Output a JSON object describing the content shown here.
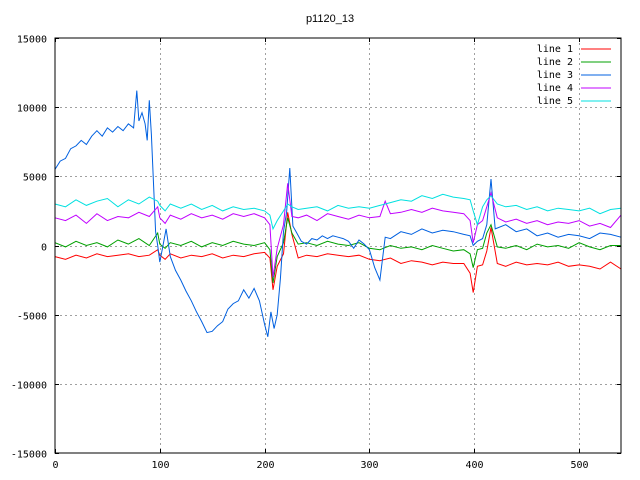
{
  "chart_data": {
    "type": "line",
    "title": "p1120_13",
    "xlabel": "",
    "ylabel": "",
    "xlim": [
      0,
      540
    ],
    "ylim": [
      -15000,
      15000
    ],
    "xticks": [
      0,
      100,
      200,
      300,
      400,
      500
    ],
    "yticks": [
      -15000,
      -10000,
      -5000,
      0,
      5000,
      10000,
      15000
    ],
    "grid": true,
    "legend_position": "top-right",
    "series": [
      {
        "name": "line 1",
        "color": "#ff0000",
        "x": [
          0,
          10,
          20,
          30,
          40,
          50,
          60,
          70,
          80,
          90,
          98,
          100,
          105,
          110,
          120,
          130,
          140,
          150,
          160,
          170,
          180,
          190,
          200,
          205,
          208,
          212,
          218,
          222,
          226,
          232,
          240,
          250,
          260,
          270,
          280,
          290,
          300,
          310,
          320,
          330,
          340,
          350,
          360,
          370,
          380,
          390,
          396,
          399,
          403,
          408,
          412,
          416,
          422,
          430,
          440,
          450,
          460,
          470,
          480,
          490,
          500,
          510,
          520,
          530,
          540
        ],
        "y": [
          -800,
          -1000,
          -700,
          -900,
          -600,
          -800,
          -700,
          -600,
          -800,
          -700,
          -300,
          -700,
          -1000,
          -600,
          -900,
          -700,
          -800,
          -600,
          -900,
          -700,
          -800,
          -600,
          -500,
          -900,
          -3200,
          -1500,
          -600,
          2400,
          800,
          -900,
          -700,
          -800,
          -600,
          -700,
          -800,
          -700,
          -1000,
          -1100,
          -900,
          -1300,
          -1100,
          -1200,
          -1400,
          -1200,
          -1300,
          -1300,
          -2000,
          -3400,
          -1500,
          -1400,
          -400,
          1300,
          -1300,
          -1500,
          -1200,
          -1400,
          -1300,
          -1400,
          -1200,
          -1500,
          -1400,
          -1500,
          -1700,
          -1200,
          -1700
        ]
      },
      {
        "name": "line 2",
        "color": "#00a000",
        "x": [
          0,
          10,
          20,
          30,
          40,
          50,
          60,
          70,
          80,
          90,
          98,
          100,
          105,
          110,
          120,
          130,
          140,
          150,
          160,
          170,
          180,
          190,
          200,
          205,
          208,
          212,
          218,
          222,
          226,
          232,
          240,
          250,
          260,
          270,
          280,
          290,
          300,
          310,
          320,
          330,
          340,
          350,
          360,
          370,
          380,
          390,
          396,
          399,
          403,
          408,
          412,
          416,
          422,
          430,
          440,
          450,
          460,
          470,
          480,
          490,
          500,
          510,
          520,
          530,
          540
        ],
        "y": [
          200,
          -100,
          300,
          0,
          200,
          -100,
          400,
          100,
          500,
          0,
          900,
          100,
          -200,
          200,
          0,
          300,
          -100,
          200,
          0,
          300,
          100,
          0,
          200,
          -300,
          -2700,
          -800,
          200,
          2000,
          900,
          100,
          200,
          0,
          300,
          100,
          0,
          200,
          -200,
          -300,
          0,
          -200,
          -100,
          -300,
          0,
          -200,
          -400,
          -300,
          -600,
          -1600,
          -300,
          -200,
          900,
          1500,
          -100,
          -200,
          0,
          -300,
          100,
          -100,
          0,
          -200,
          200,
          -100,
          -300,
          0,
          0
        ]
      },
      {
        "name": "line 3",
        "color": "#0060e0",
        "x": [
          0,
          5,
          10,
          15,
          20,
          25,
          30,
          35,
          40,
          45,
          50,
          55,
          60,
          65,
          70,
          75,
          78,
          80,
          83,
          86,
          88,
          90,
          92,
          94,
          96,
          98,
          100,
          103,
          106,
          110,
          115,
          120,
          125,
          130,
          135,
          140,
          145,
          150,
          155,
          160,
          165,
          170,
          175,
          180,
          185,
          190,
          195,
          200,
          203,
          206,
          209,
          212,
          215,
          218,
          221,
          224,
          227,
          230,
          235,
          240,
          245,
          250,
          255,
          260,
          265,
          270,
          275,
          280,
          285,
          290,
          295,
          300,
          305,
          310,
          315,
          320,
          330,
          340,
          350,
          360,
          370,
          380,
          390,
          396,
          399,
          403,
          408,
          412,
          416,
          420,
          430,
          440,
          450,
          460,
          470,
          480,
          490,
          500,
          510,
          520,
          530,
          540
        ],
        "y": [
          5500,
          6100,
          6300,
          7000,
          7200,
          7600,
          7300,
          7900,
          8300,
          7900,
          8500,
          8200,
          8600,
          8300,
          8800,
          8500,
          11200,
          9000,
          9600,
          8800,
          7600,
          10500,
          8000,
          4500,
          1000,
          0,
          -1200,
          0,
          1200,
          -800,
          -1800,
          -2500,
          -3300,
          -4000,
          -4800,
          -5500,
          -6300,
          -6200,
          -5800,
          -5500,
          -4600,
          -4200,
          -4000,
          -3200,
          -3800,
          -3100,
          -4000,
          -5700,
          -6600,
          -4800,
          -6000,
          -5000,
          -2400,
          1000,
          2400,
          5600,
          1400,
          1000,
          300,
          100,
          500,
          400,
          700,
          500,
          700,
          600,
          500,
          300,
          -200,
          400,
          100,
          -300,
          -1600,
          -2500,
          600,
          500,
          1000,
          800,
          1200,
          900,
          1100,
          1000,
          800,
          700,
          0,
          300,
          500,
          1500,
          4800,
          1200,
          1500,
          1000,
          1200,
          700,
          900,
          600,
          800,
          700,
          500,
          900,
          800,
          600
        ]
      },
      {
        "name": "line 4",
        "color": "#c000ff",
        "x": [
          0,
          10,
          20,
          30,
          40,
          50,
          60,
          70,
          80,
          90,
          98,
          100,
          105,
          110,
          120,
          130,
          140,
          150,
          160,
          170,
          180,
          190,
          200,
          205,
          208,
          212,
          218,
          222,
          226,
          232,
          240,
          250,
          260,
          270,
          280,
          290,
          300,
          310,
          315,
          320,
          330,
          340,
          350,
          360,
          370,
          380,
          390,
          396,
          399,
          403,
          408,
          412,
          416,
          422,
          430,
          440,
          450,
          460,
          470,
          480,
          490,
          500,
          510,
          520,
          530,
          540
        ],
        "y": [
          2000,
          1800,
          2200,
          1600,
          2300,
          1800,
          2100,
          2000,
          2400,
          2100,
          2800,
          2000,
          1600,
          2200,
          1900,
          2300,
          2000,
          2200,
          1900,
          2300,
          2100,
          2300,
          2000,
          1500,
          -2300,
          -200,
          1500,
          4500,
          2100,
          2000,
          2200,
          1800,
          2300,
          2100,
          1900,
          2200,
          2000,
          2100,
          3200,
          2300,
          2400,
          2600,
          2400,
          2700,
          2500,
          2400,
          2300,
          1800,
          200,
          1500,
          1800,
          2800,
          3800,
          2000,
          1700,
          1900,
          1600,
          1800,
          1500,
          1700,
          1600,
          1800,
          1400,
          1600,
          1300,
          2200
        ]
      },
      {
        "name": "line 5",
        "color": "#00e0e0",
        "x": [
          0,
          10,
          20,
          30,
          40,
          50,
          60,
          70,
          80,
          90,
          98,
          100,
          105,
          110,
          120,
          130,
          140,
          150,
          160,
          170,
          180,
          190,
          200,
          205,
          208,
          212,
          218,
          222,
          226,
          232,
          240,
          250,
          260,
          270,
          280,
          290,
          300,
          310,
          320,
          330,
          340,
          350,
          360,
          370,
          380,
          390,
          396,
          399,
          403,
          408,
          412,
          416,
          422,
          430,
          440,
          450,
          460,
          470,
          480,
          490,
          500,
          510,
          520,
          530,
          540
        ],
        "y": [
          3000,
          2800,
          3300,
          2900,
          3200,
          3400,
          2800,
          3300,
          3000,
          3500,
          3200,
          2900,
          2500,
          3000,
          2700,
          3000,
          2600,
          2900,
          2500,
          2800,
          2600,
          2700,
          2500,
          2200,
          1200,
          1800,
          2500,
          3000,
          2800,
          2600,
          2700,
          2800,
          2500,
          2900,
          2700,
          2800,
          2700,
          2900,
          3100,
          3300,
          3200,
          3600,
          3400,
          3700,
          3500,
          3400,
          3300,
          2500,
          1500,
          2800,
          3300,
          3600,
          3000,
          2800,
          2900,
          2600,
          2800,
          2500,
          2700,
          2600,
          2500,
          2700,
          2300,
          2600,
          2700
        ]
      }
    ]
  }
}
